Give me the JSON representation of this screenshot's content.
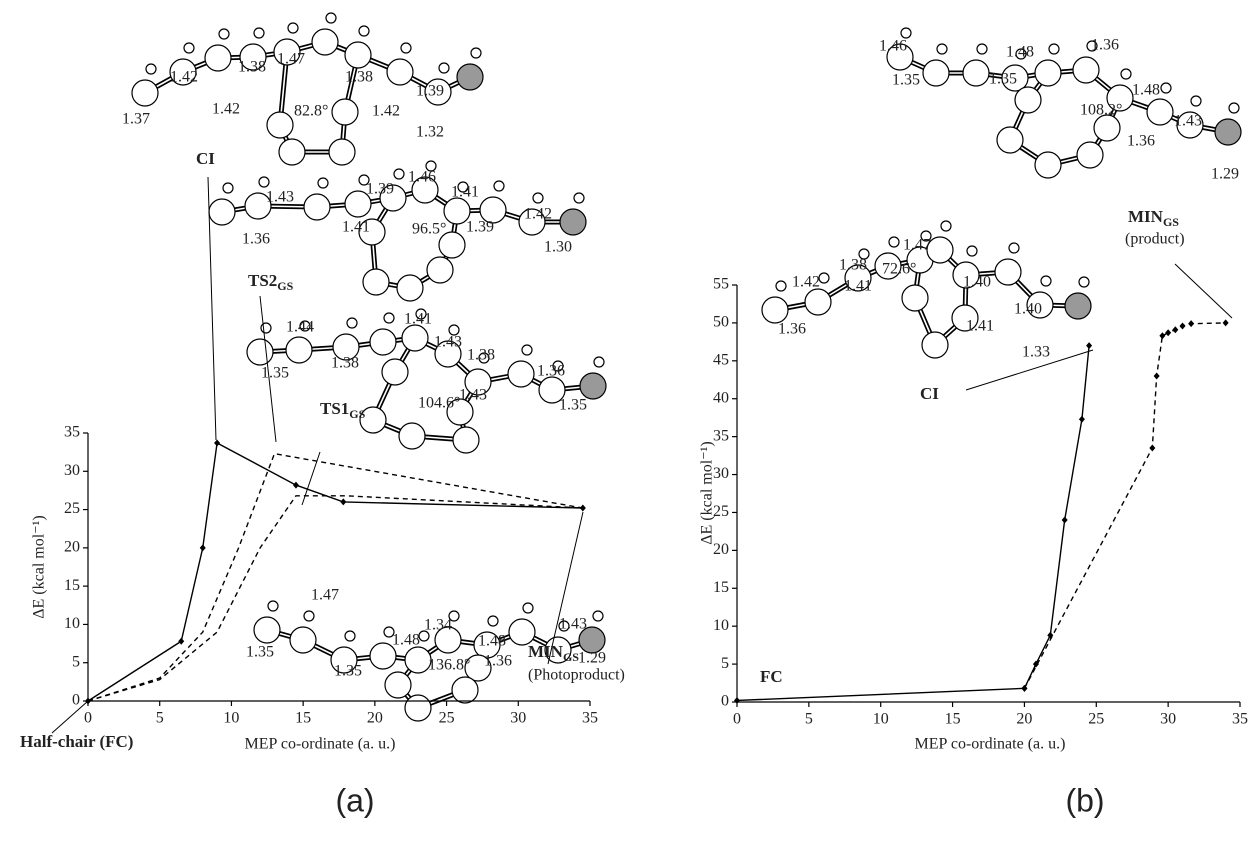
{
  "chart_data": [
    {
      "type": "line",
      "panel": "(a)",
      "x_label": "MEP co-ordinate (a. u.)",
      "y_label": "ΔE (kcal mol⁻¹)",
      "xlim": [
        0,
        35
      ],
      "xticks": [
        0,
        5,
        10,
        15,
        20,
        25,
        30,
        35
      ],
      "ylim": [
        0,
        35
      ],
      "yticks": [
        0,
        5,
        10,
        15,
        20,
        25,
        30,
        35
      ],
      "series": [
        {
          "color": "#000000",
          "dash": false,
          "marker": true,
          "x": [
            0,
            6.5,
            8,
            9,
            14.5,
            17.8,
            34.5
          ],
          "values": [
            0,
            7.8,
            20,
            33.7,
            28.2,
            26,
            25.2
          ]
        },
        {
          "color": "#000000",
          "dash": true,
          "marker": false,
          "x": [
            0,
            5,
            8,
            10.5,
            13,
            34.5
          ],
          "values": [
            0,
            3,
            9,
            20,
            32.3,
            25.2
          ]
        },
        {
          "color": "#000000",
          "dash": true,
          "marker": false,
          "x": [
            0,
            5,
            9,
            12,
            14.5,
            18,
            34.5
          ],
          "values": [
            0,
            2.8,
            9,
            20,
            26.8,
            26.8,
            25.2
          ]
        }
      ],
      "annotations": [
        {
          "text": "CI"
        },
        {
          "text": "TS2",
          "sub": "GS"
        },
        {
          "text": "TS1",
          "sub": "GS"
        },
        {
          "text": "MIN",
          "sub": "GS",
          "line2": "(Photoproduct)"
        },
        {
          "text": "Half-chair (FC)"
        }
      ],
      "molecules": [
        {
          "labels": [
            "1.42",
            "1.38",
            "1.47",
            "1.38",
            "1.37",
            "1.42",
            "82.8°",
            "1.42",
            "1.39",
            "1.32"
          ]
        },
        {
          "labels": [
            "1.43",
            "1.39",
            "1.46",
            "1.41",
            "1.36",
            "1.41",
            "96.5°",
            "1.39",
            "1.42",
            "1.30"
          ]
        },
        {
          "labels": [
            "1.44",
            "1.41",
            "1.43",
            "1.38",
            "1.35",
            "1.38",
            "104.6°",
            "1.43",
            "1.36",
            "1.35"
          ]
        },
        {
          "labels": [
            "1.47",
            "1.34",
            "1.48",
            "1.43",
            "1.35",
            "1.48",
            "1.35",
            "136.8°",
            "1.36",
            "1.29"
          ]
        }
      ]
    },
    {
      "type": "line",
      "panel": "(b)",
      "x_label": "MEP co-ordinate (a. u.)",
      "y_label": "ΔE (kcal mol⁻¹)",
      "xlim": [
        0,
        35
      ],
      "xticks": [
        0,
        5,
        10,
        15,
        20,
        25,
        30,
        35
      ],
      "ylim": [
        0,
        55
      ],
      "yticks": [
        0,
        5,
        10,
        15,
        20,
        25,
        30,
        35,
        40,
        45,
        50,
        55
      ],
      "series": [
        {
          "color": "#000000",
          "dash": false,
          "marker": true,
          "x": [
            0,
            20,
            20.8,
            21.8,
            22.8,
            24,
            24.5
          ],
          "values": [
            0.2,
            1.8,
            5,
            8.8,
            24,
            37.3,
            47
          ]
        },
        {
          "color": "#000000",
          "dash": true,
          "marker": true,
          "x": [
            20,
            28.9,
            29.2,
            29.6,
            30,
            30.5,
            31,
            31.6,
            34
          ],
          "values": [
            1.8,
            33.5,
            43,
            48.3,
            48.7,
            49.1,
            49.6,
            49.9,
            50
          ]
        }
      ],
      "annotations": [
        {
          "text": "CI"
        },
        {
          "text": "MIN",
          "sub": "GS",
          "line2": "(product)"
        },
        {
          "text": "FC"
        }
      ],
      "molecules": [
        {
          "labels": [
            "1.46",
            "1.48",
            "1.36",
            "1.35",
            "1.35",
            "108.2°",
            "1.48",
            "1.43",
            "1.36",
            "1.29"
          ]
        },
        {
          "labels": [
            "1.47",
            "1.38",
            "1.42",
            "72.6°",
            "1.40",
            "1.41",
            "1.40",
            "1.36",
            "1.41",
            "1.33"
          ]
        }
      ]
    }
  ]
}
